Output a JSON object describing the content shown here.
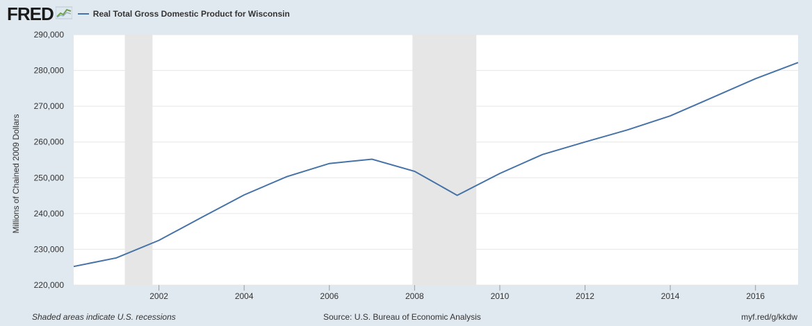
{
  "header": {
    "logo_text": "FRED",
    "logo_icon": "chart-line-icon",
    "legend_label": "Real Total Gross Domestic Product for Wisconsin"
  },
  "footer": {
    "recession_note": "Shaded areas indicate U.S. recessions",
    "source": "Source: U.S. Bureau of Economic Analysis",
    "short_url": "myf.red/g/kkdw"
  },
  "colors": {
    "line": "#4572a7",
    "recession": "#e6e6e6",
    "background": "#e1e9f0",
    "plot_bg": "#ffffff",
    "grid": "#e6e6e6"
  },
  "chart_data": {
    "type": "line",
    "title": "",
    "xlabel": "",
    "ylabel": "Millions of Chained 2009 Dollars",
    "xlim": [
      2000,
      2017
    ],
    "ylim": [
      220000,
      290000
    ],
    "yticks": [
      220000,
      230000,
      240000,
      250000,
      260000,
      270000,
      280000,
      290000
    ],
    "ytick_labels": [
      "220,000",
      "230,000",
      "240,000",
      "250,000",
      "260,000",
      "270,000",
      "280,000",
      "290,000"
    ],
    "xticks": [
      2002,
      2004,
      2006,
      2008,
      2010,
      2012,
      2014,
      2016
    ],
    "xtick_labels": [
      "2002",
      "2004",
      "2006",
      "2008",
      "2010",
      "2012",
      "2014",
      "2016"
    ],
    "grid": true,
    "legend_position": "top-left",
    "recessions": [
      {
        "start": 2001.2,
        "end": 2001.85
      },
      {
        "start": 2007.95,
        "end": 2009.45
      }
    ],
    "series": [
      {
        "name": "Real Total Gross Domestic Product for Wisconsin",
        "x": [
          2000,
          2001,
          2002,
          2003,
          2004,
          2005,
          2006,
          2007,
          2008,
          2009,
          2010,
          2011,
          2012,
          2013,
          2014,
          2015,
          2016,
          2017
        ],
        "values": [
          225200,
          227600,
          232500,
          238900,
          245200,
          250300,
          254000,
          255200,
          251800,
          245100,
          251200,
          256500,
          260000,
          263400,
          267300,
          272500,
          277700,
          282200
        ]
      }
    ]
  }
}
